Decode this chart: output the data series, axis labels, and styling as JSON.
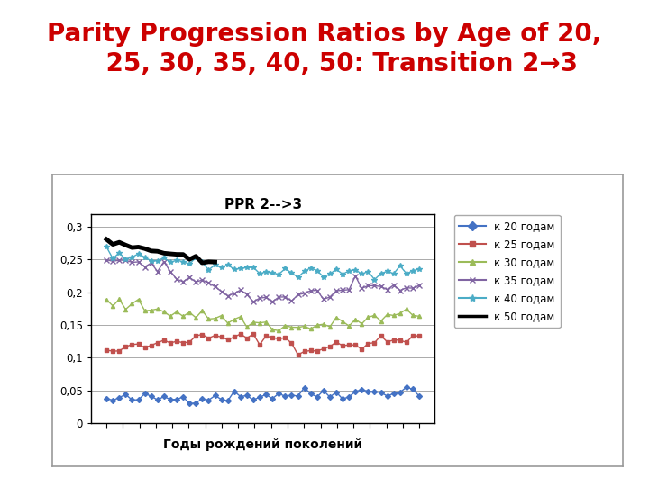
{
  "title_line1": "Parity Progression Ratios by Age of 20,",
  "title_line2": "    25, 30, 35, 40, 50: Transition 2→3",
  "chart_title": "PPR 2-->3",
  "xlabel": "Годы рождений поколений",
  "ylim": [
    0,
    0.32
  ],
  "yticks": [
    0,
    0.05,
    0.1,
    0.15,
    0.2,
    0.25,
    0.3
  ],
  "ytick_labels": [
    "0",
    "0,05",
    "0,1",
    "0,15",
    "0,2",
    "0,25",
    "0,3"
  ],
  "n_points": 50,
  "legend_labels": [
    "к 20 годам",
    "к 25 годам",
    "к 30 годам",
    "к 35 годам",
    "к 40 годам",
    "к 50 годам"
  ],
  "colors": [
    "#4472C4",
    "#C0504D",
    "#9BBB59",
    "#8064A2",
    "#4BACC6",
    "#000000"
  ],
  "background_color": "#FFFFFF",
  "title_color": "#CC0000",
  "title_fontsize": 20,
  "chart_title_fontsize": 11,
  "slide_bg": "#F0F0F0"
}
